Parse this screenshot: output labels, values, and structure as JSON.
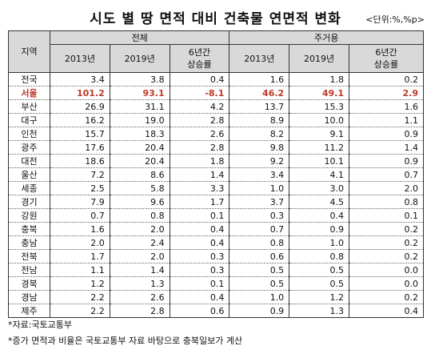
{
  "header": {
    "title": "시도 별 땅 면적 대비 건축물 연면적 변화",
    "unit": "<단위:%,%p>"
  },
  "table": {
    "region_header": "지역",
    "groups": [
      "전체",
      "주거용"
    ],
    "columns": [
      "2013년",
      "2019년",
      "6년간\n상승률",
      "2013년",
      "2019년",
      "6년간\n상승률"
    ],
    "rows": [
      [
        "전국",
        "3.4",
        "3.8",
        "0.4",
        "1.6",
        "1.8",
        "0.2"
      ],
      [
        "서울",
        "101.2",
        "93.1",
        "-8.1",
        "46.2",
        "49.1",
        "2.9"
      ],
      [
        "부산",
        "26.9",
        "31.1",
        "4.2",
        "13.7",
        "15.3",
        "1.6"
      ],
      [
        "대구",
        "16.2",
        "19.0",
        "2.8",
        "8.9",
        "10.0",
        "1.1"
      ],
      [
        "인천",
        "15.7",
        "18.3",
        "2.6",
        "8.2",
        "9.1",
        "0.9"
      ],
      [
        "광주",
        "17.6",
        "20.4",
        "2.8",
        "9.8",
        "11.2",
        "1.4"
      ],
      [
        "대전",
        "18.6",
        "20.4",
        "1.8",
        "9.2",
        "10.1",
        "0.9"
      ],
      [
        "울산",
        "7.2",
        "8.6",
        "1.4",
        "3.4",
        "4.1",
        "0.7"
      ],
      [
        "세종",
        "2.5",
        "5.8",
        "3.3",
        "1.0",
        "3.0",
        "2.0"
      ],
      [
        "경기",
        "7.9",
        "9.6",
        "1.7",
        "3.7",
        "4.5",
        "0.8"
      ],
      [
        "강원",
        "0.7",
        "0.8",
        "0.1",
        "0.3",
        "0.4",
        "0.1"
      ],
      [
        "충북",
        "1.6",
        "2.0",
        "0.4",
        "0.7",
        "0.9",
        "0.2"
      ],
      [
        "충남",
        "2.0",
        "2.4",
        "0.4",
        "0.8",
        "1.0",
        "0.2"
      ],
      [
        "전북",
        "1.7",
        "2.0",
        "0.3",
        "0.6",
        "0.8",
        "0.2"
      ],
      [
        "전남",
        "1.1",
        "1.4",
        "0.3",
        "0.5",
        "0.5",
        "0.0"
      ],
      [
        "경북",
        "1.2",
        "1.3",
        "0.1",
        "0.5",
        "0.5",
        "0.0"
      ],
      [
        "경남",
        "2.2",
        "2.6",
        "0.4",
        "1.0",
        "1.2",
        "0.2"
      ],
      [
        "제주",
        "2.2",
        "2.8",
        "0.6",
        "0.9",
        "1.3",
        "0.4"
      ]
    ],
    "highlight_row": 1
  },
  "notes": [
    "*자료:국토교통부",
    "*증가 면적과 비율은 국토교통부 자료 바탕으로 충북일보가 계산"
  ]
}
